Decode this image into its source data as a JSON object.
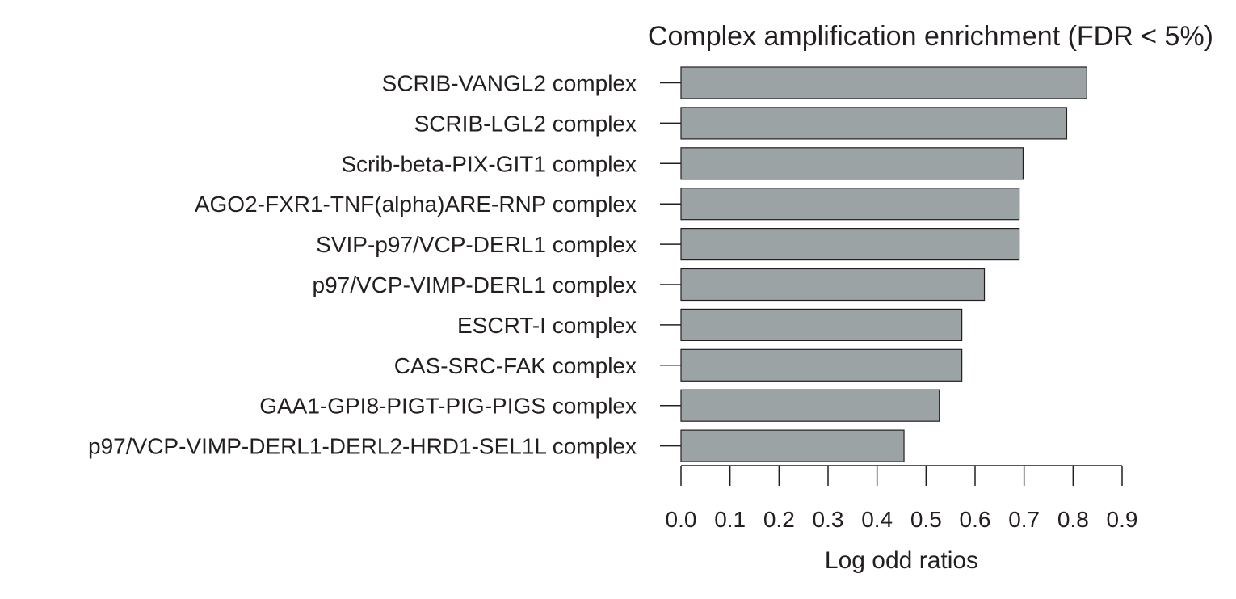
{
  "chart_data": {
    "type": "bar",
    "orientation": "horizontal",
    "title": "Complex amplification enrichment (FDR < 5%)",
    "xlabel": "Log odd ratios",
    "ylabel": "",
    "xlim": [
      0,
      0.9
    ],
    "xticks": [
      0.0,
      0.1,
      0.2,
      0.3,
      0.4,
      0.5,
      0.6,
      0.7,
      0.8,
      0.9
    ],
    "xtick_labels": [
      "0.0",
      "0.1",
      "0.2",
      "0.3",
      "0.4",
      "0.5",
      "0.6",
      "0.7",
      "0.8",
      "0.9"
    ],
    "categories": [
      "SCRIB-VANGL2 complex",
      "SCRIB-LGL2 complex",
      "Scrib-beta-PIX-GIT1 complex",
      "AGO2-FXR1-TNF(alpha)ARE-RNP complex",
      "SVIP-p97/VCP-DERL1 complex",
      "p97/VCP-VIMP-DERL1 complex",
      "ESCRT-I complex",
      "CAS-SRC-FAK complex",
      "GAA1-GPI8-PIGT-PIG-PIGS complex",
      "p97/VCP-VIMP-DERL1-DERL2-HRD1-SEL1L complex"
    ],
    "values": [
      0.828,
      0.787,
      0.698,
      0.69,
      0.69,
      0.619,
      0.573,
      0.573,
      0.527,
      0.455
    ],
    "bar_color": "#9ca3a5",
    "grid": false,
    "legend": "none"
  }
}
